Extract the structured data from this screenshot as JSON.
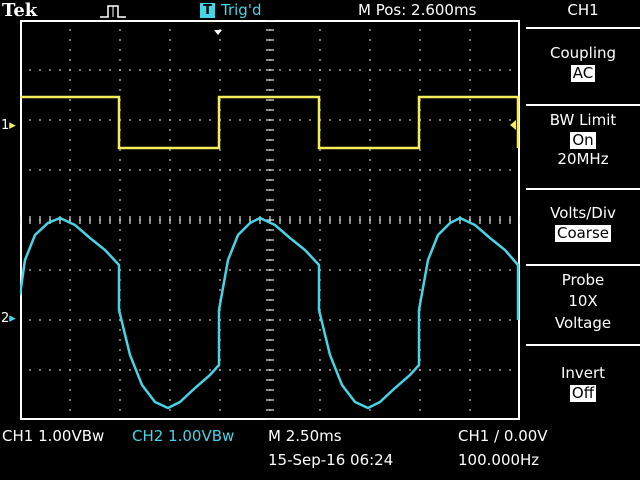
{
  "header": {
    "brand": "Tek",
    "trigger_status": "Trig'd",
    "trigger_badge": "T",
    "position": "M Pos: 2.600ms",
    "menu_title": "CH1"
  },
  "menu": [
    {
      "title": "Coupling",
      "values": [
        "AC"
      ],
      "boxed": [
        true
      ]
    },
    {
      "title": "BW Limit",
      "values": [
        "On",
        "20MHz"
      ],
      "boxed": [
        true,
        false
      ]
    },
    {
      "title": "Volts/Div",
      "values": [
        "Coarse"
      ],
      "boxed": [
        true
      ]
    },
    {
      "title": "Probe",
      "values": [
        "10X",
        "Voltage"
      ],
      "boxed": [
        false,
        false
      ]
    },
    {
      "title": "Invert",
      "values": [
        "Off"
      ],
      "boxed": [
        true
      ]
    }
  ],
  "markers": {
    "ch1": "1",
    "ch2": "2"
  },
  "footer": {
    "ch1_scale": "CH1  1.00VBw",
    "ch2_scale": "CH2  1.00VBw",
    "timebase": "M 2.50ms",
    "trigger": "CH1 / 0.00V",
    "date": "15-Sep-16 06:24",
    "frequency": "100.000Hz"
  },
  "colors": {
    "ch1": "#f5ee5a",
    "ch2": "#46d4e6",
    "grid": "#ffffff",
    "background": "#000000"
  },
  "icons": [
    "pulse-icon",
    "trigger-badge-icon",
    "trigger-position-marker-icon",
    "trigger-level-marker-icon"
  ]
}
